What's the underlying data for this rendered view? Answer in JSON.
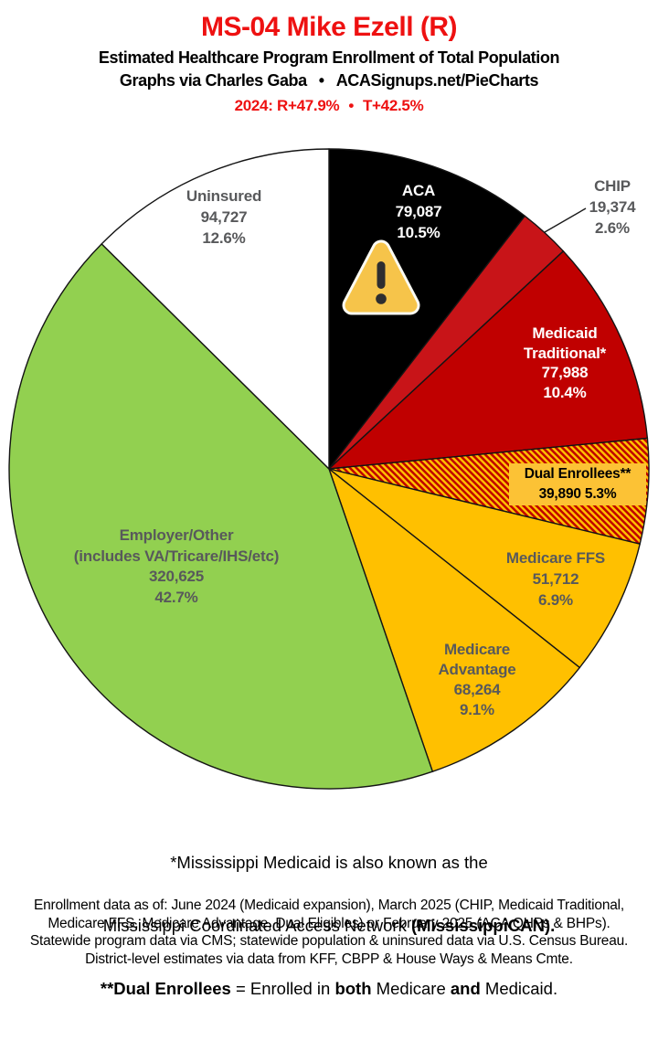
{
  "header": {
    "title": "MS-04 Mike Ezell (R)",
    "subtitle": "Estimated Healthcare Program Enrollment of Total Population",
    "credit_author": "Graphs via Charles Gaba",
    "bullet": "•",
    "credit_site": "ACASignups.net/PieCharts",
    "partisan_left": "2024: R+47.9%",
    "partisan_right": "T+42.5%"
  },
  "chart_data": {
    "type": "pie",
    "title": "Estimated Healthcare Program Enrollment of Total Population",
    "district": "MS-04",
    "representative": "Mike Ezell (R)",
    "start_angle": "12 o'clock, clockwise",
    "slices": [
      {
        "key": "aca",
        "label": "ACA",
        "enrollment": "79,087",
        "value": 79087,
        "percent": 10.5,
        "pct_label": "10.5%",
        "color": "#000000",
        "text_color": "#FFFFFF"
      },
      {
        "key": "chip",
        "label": "CHIP",
        "enrollment": "19,374",
        "value": 19374,
        "percent": 2.6,
        "pct_label": "2.6%",
        "color": "#C81418",
        "text_color": "#58595B",
        "callout_line": true
      },
      {
        "key": "medicaid",
        "label": "Medicaid Traditional*",
        "label_lines": [
          "Medicaid",
          "Traditional*"
        ],
        "enrollment": "77,988",
        "value": 77988,
        "percent": 10.4,
        "pct_label": "10.4%",
        "color": "#C00000",
        "text_color": "#FFFFFF"
      },
      {
        "key": "dual",
        "label": "Dual Enrollees**",
        "enrollment": "39,890",
        "value": 39890,
        "percent": 5.3,
        "pct_label": "5.3%",
        "value_line": "39,890 5.3%",
        "color": "hatch",
        "hatch_colors": [
          "#C00000",
          "#FFC000"
        ],
        "text_color": "#000000"
      },
      {
        "key": "ffs",
        "label": "Medicare FFS",
        "enrollment": "51,712",
        "value": 51712,
        "percent": 6.9,
        "pct_label": "6.9%",
        "color": "#FFC000",
        "text_color": "#58595B"
      },
      {
        "key": "madv",
        "label": "Medicare Advantage",
        "label_lines": [
          "Medicare",
          "Advantage"
        ],
        "enrollment": "68,264",
        "value": 68264,
        "percent": 9.1,
        "pct_label": "9.1%",
        "color": "#FFC000",
        "text_color": "#58595B"
      },
      {
        "key": "employer",
        "label": "Employer/Other (includes VA/Tricare/IHS/etc)",
        "label_lines": [
          "Employer/Other",
          "(includes VA/Tricare/IHS/etc)"
        ],
        "enrollment": "320,625",
        "value": 320625,
        "percent": 42.7,
        "pct_label": "42.7%",
        "color": "#92D050",
        "text_color": "#58595B"
      },
      {
        "key": "uninsured",
        "label": "Uninsured",
        "enrollment": "94,727",
        "value": 94727,
        "percent": 12.6,
        "pct_label": "12.6%",
        "color": "#FFFFFF",
        "text_color": "#58595B"
      }
    ],
    "annotations": [
      {
        "icon": "warning-triangle",
        "on_slice": "ACA"
      }
    ]
  },
  "footnotes": {
    "line1": "*Mississippi Medicaid is also known as the",
    "line2_regular": "Mississippi Coordinated Access Network ",
    "line2_bold": "(MississippiCAN).",
    "line3_bold1": "**Dual Enrollees",
    "line3_regular1": " = Enrolled in ",
    "line3_bold2": "both",
    "line3_regular2": " Medicare ",
    "line3_bold3": "and",
    "line3_regular3": " Medicaid."
  },
  "source": {
    "line1": "Enrollment data as of: June 2024 (Medicaid expansion), March 2025 (CHIP, Medicaid Traditional,",
    "line2": "Medicare FFS, Medicare Advantage, Dual Eligibles) or February 2025 (ACA QHPs & BHPs).",
    "line3": "Statewide program data via CMS; statewide population & uninsured data via U.S. Census Bureau.",
    "line4": "District-level estimates via data from KFF, CBPP & House Ways & Means Cmte."
  }
}
